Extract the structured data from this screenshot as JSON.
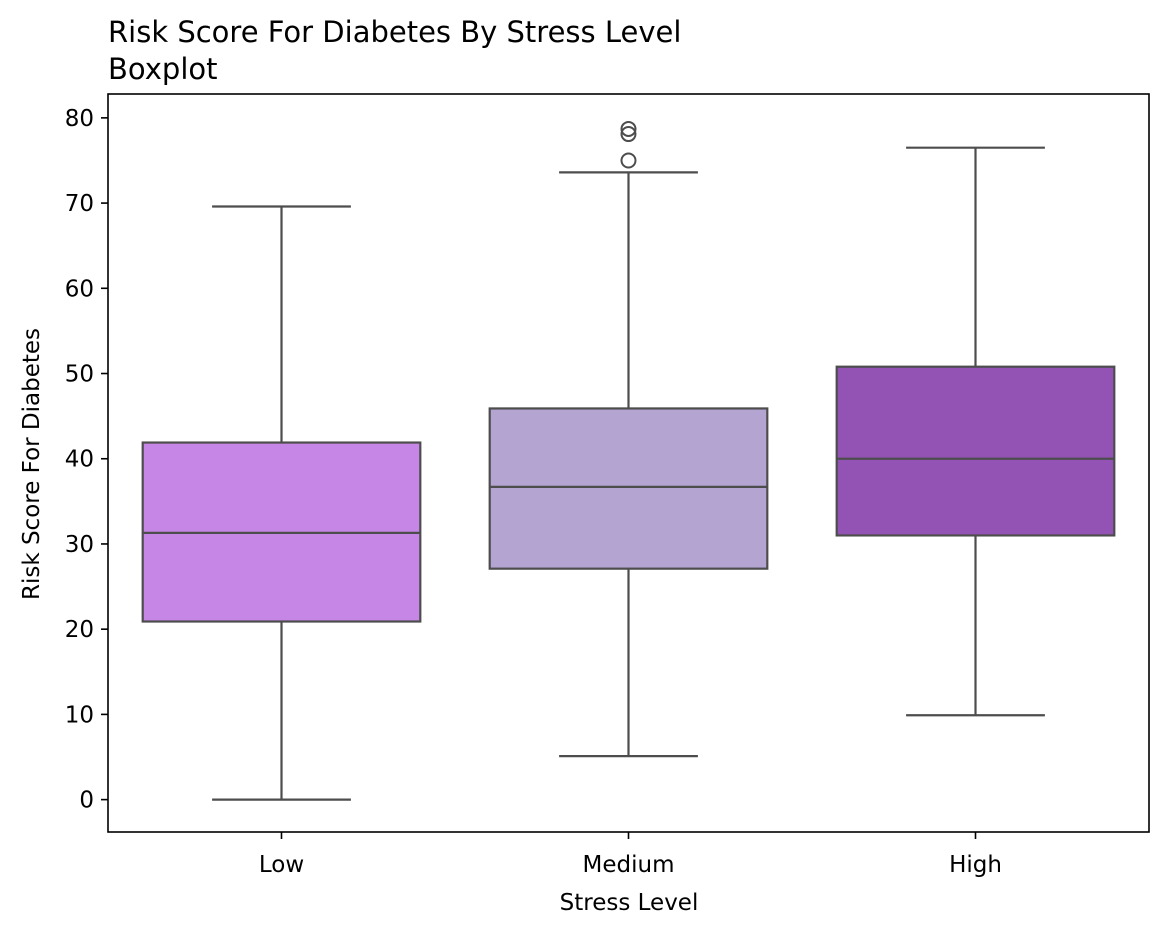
{
  "chart_data": {
    "type": "boxplot",
    "title": "Risk Score For Diabetes By Stress Level",
    "subtitle": "Boxplot",
    "xlabel": "Stress Level",
    "ylabel": "Risk Score For Diabetes",
    "ylim": [
      -3.8,
      82.8
    ],
    "yticks": [
      0,
      10,
      20,
      30,
      40,
      50,
      60,
      70,
      80
    ],
    "grid": false,
    "categories": [
      "Low",
      "Medium",
      "High"
    ],
    "boxes": [
      {
        "category": "Low",
        "whisker_low": 0,
        "q1": 20.9,
        "median": 31.3,
        "q3": 41.9,
        "whisker_high": 69.6,
        "outliers": [],
        "color": "#c586e6"
      },
      {
        "category": "Medium",
        "whisker_low": 5.1,
        "q1": 27.1,
        "median": 36.7,
        "q3": 45.9,
        "whisker_high": 73.6,
        "outliers": [
          75.0,
          78.1,
          78.7
        ],
        "color": "#b3a4d2"
      },
      {
        "category": "High",
        "whisker_low": 9.9,
        "q1": 31.0,
        "median": 40.0,
        "q3": 50.8,
        "whisker_high": 76.5,
        "outliers": [],
        "color": "#9253b5"
      }
    ],
    "line_color": "#4d4d4d"
  }
}
